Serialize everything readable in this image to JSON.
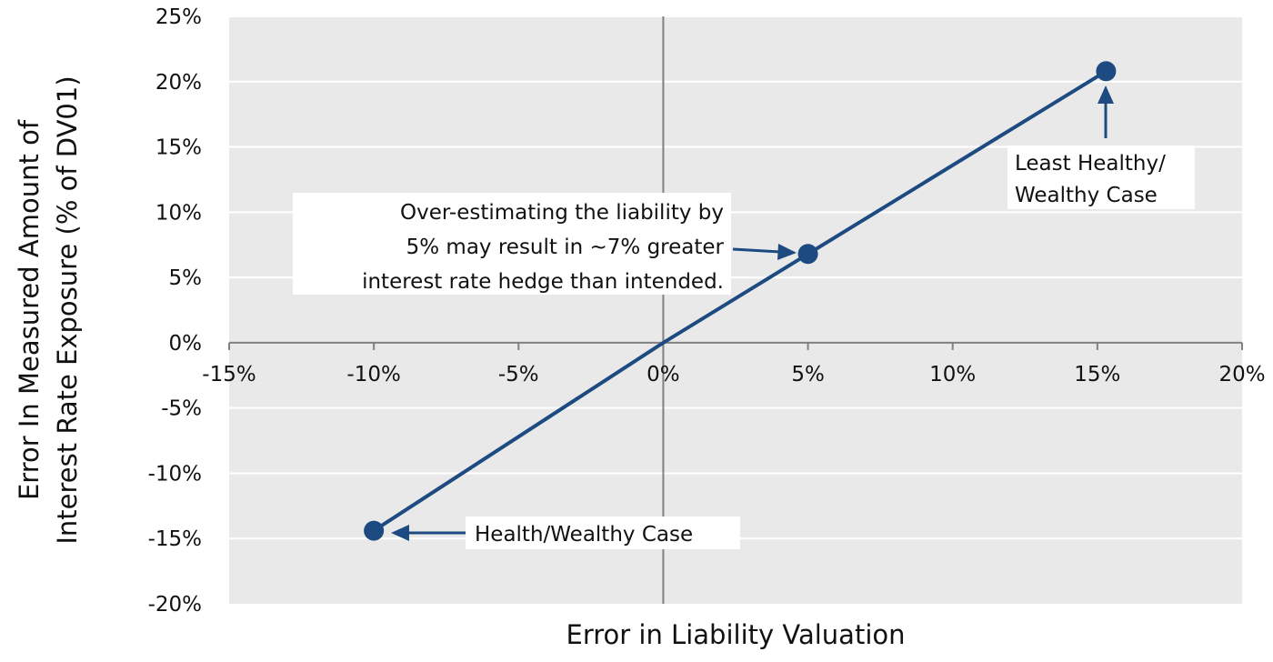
{
  "chart_data": {
    "type": "line",
    "xlabel": "Error in Liability Valuation",
    "ylabel_lines": [
      "Error In Measured Amount of",
      "Interest Rate Exposure (% of DV01)"
    ],
    "xlim": [
      -15,
      20
    ],
    "ylim": [
      -20,
      25
    ],
    "x_ticks": [
      -15,
      -10,
      -5,
      0,
      5,
      10,
      15,
      20
    ],
    "y_ticks": [
      -20,
      -15,
      -10,
      -5,
      0,
      5,
      10,
      15,
      20,
      25
    ],
    "x_tick_labels": [
      "-15%",
      "-10%",
      "-5%",
      "0%",
      "5%",
      "10%",
      "15%",
      "20%"
    ],
    "y_tick_labels": [
      "-20%",
      "-15%",
      "-10%",
      "-5%",
      "0%",
      "5%",
      "10%",
      "15%",
      "20%",
      "25%"
    ],
    "grid": true,
    "series": [
      {
        "x": [
          -10,
          0,
          5,
          15.3
        ],
        "y": [
          -14.4,
          0,
          6.8,
          20.8
        ]
      }
    ],
    "markers": [
      {
        "x": -10,
        "y": -14.4
      },
      {
        "x": 5,
        "y": 6.8
      },
      {
        "x": 15.3,
        "y": 20.8
      }
    ],
    "annotations": [
      {
        "lines": [
          "Health/Wealthy Case"
        ],
        "x": -10,
        "y": -14.4
      },
      {
        "lines": [
          "Over-estimating the liability by",
          "5% may result in ~7% greater",
          "interest rate hedge than intended."
        ],
        "x": 5,
        "y": 6.8
      },
      {
        "lines": [
          "Least Healthy/",
          "Wealthy Case"
        ],
        "x": 15.3,
        "y": 20.8
      }
    ],
    "colors": {
      "plot_bg": "#e9e9e9",
      "grid": "#ffffff",
      "axis": "#808080",
      "series": "#1d4a80"
    }
  }
}
